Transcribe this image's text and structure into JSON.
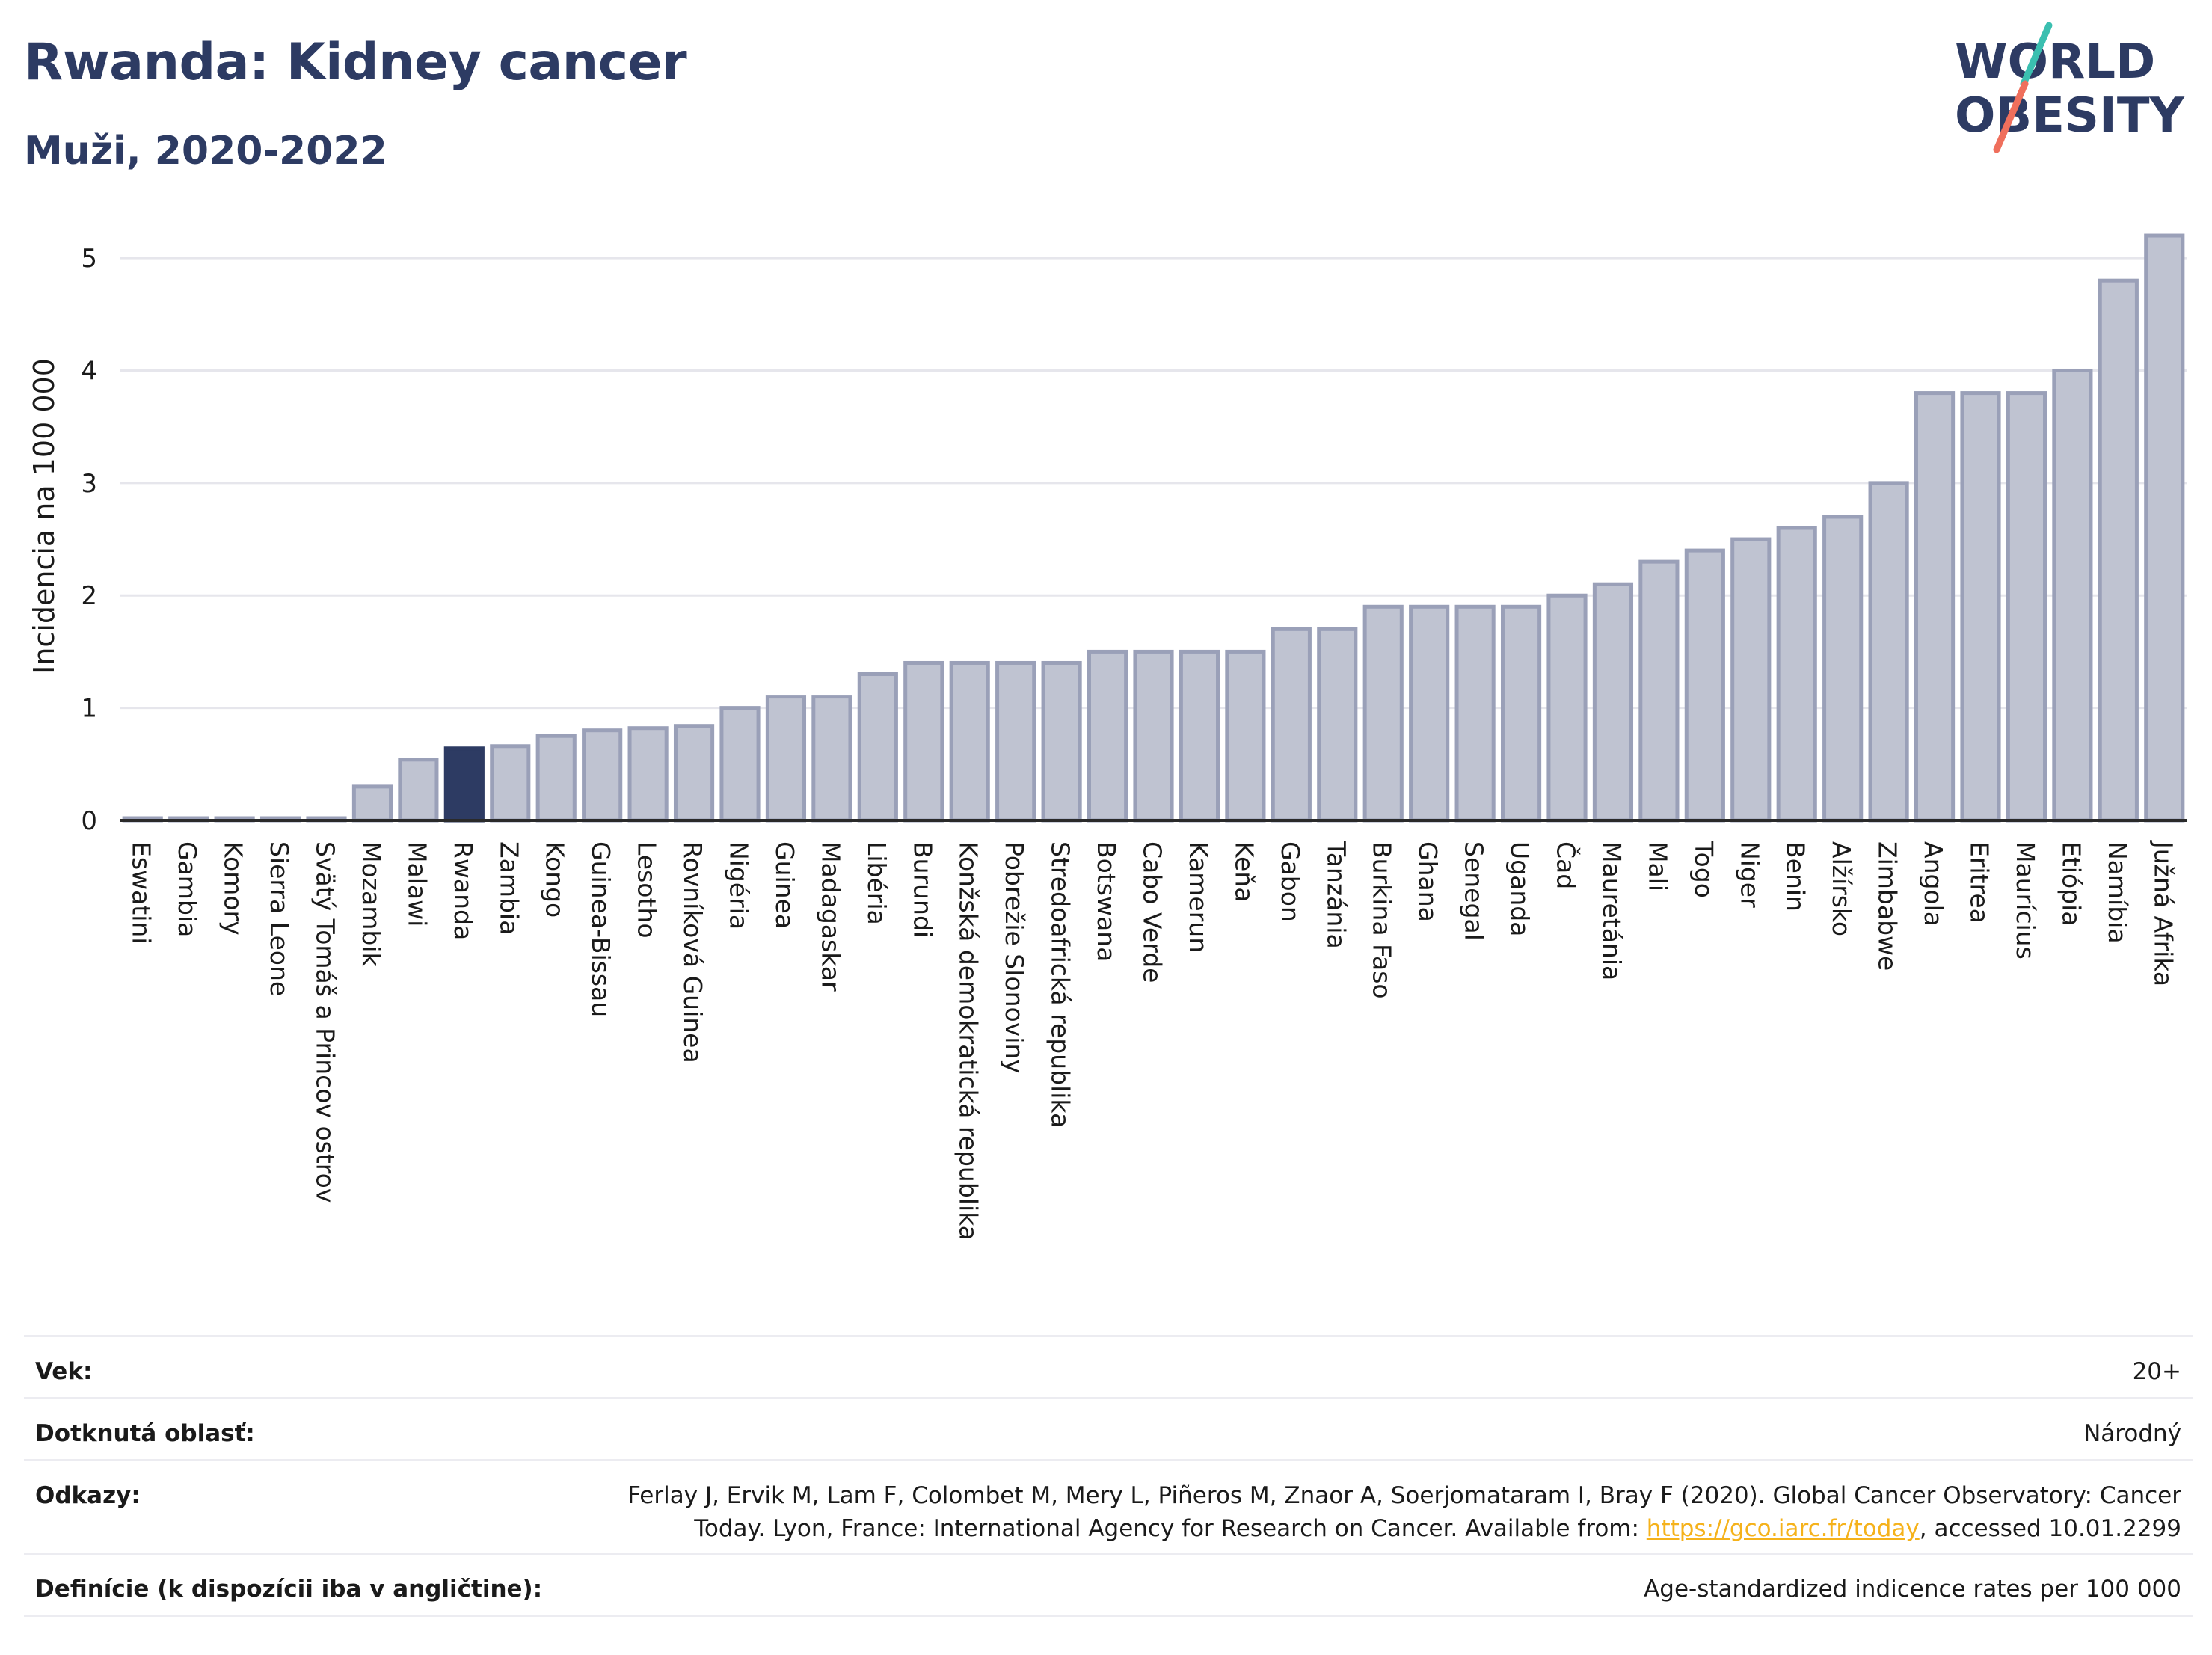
{
  "header": {
    "title": "Rwanda: Kidney cancer",
    "subtitle": "Muži, 2020-2022",
    "logo_line1": "WORLD",
    "logo_line2": "OBESITY"
  },
  "colors": {
    "bar_default": "#bfc3d1",
    "bar_default_stroke": "#9aa0b8",
    "bar_highlight": "#2d3b63",
    "title": "#2d3b63",
    "logo_teal": "#3bbfb0",
    "logo_coral": "#ef6f5c",
    "link": "#f5b21b"
  },
  "chart_data": {
    "type": "bar",
    "ylabel": "Incidencia na 100 000",
    "ylim": [
      0,
      5.3
    ],
    "yticks": [
      0,
      1,
      2,
      3,
      4,
      5
    ],
    "grid": true,
    "highlight": "Rwanda",
    "categories": [
      "Eswatini",
      "Gambia",
      "Komory",
      "Sierra Leone",
      "Svätý Tomáš a Princov ostrov",
      "Mozambik",
      "Malawi",
      "Rwanda",
      "Zambia",
      "Kongo",
      "Guinea-Bissau",
      "Lesotho",
      "Rovníková Guinea",
      "Nigéria",
      "Guinea",
      "Madagaskar",
      "Libéria",
      "Burundi",
      "Konžská demokratická republika",
      "Pobrežie Slonoviny",
      "Stredoafrická republika",
      "Botswana",
      "Cabo Verde",
      "Kamerun",
      "Keňa",
      "Gabon",
      "Tanzánia",
      "Burkina Faso",
      "Ghana",
      "Senegal",
      "Uganda",
      "Čad",
      "Mauretánia",
      "Mali",
      "Togo",
      "Niger",
      "Benin",
      "Alžírsko",
      "Zimbabwe",
      "Angola",
      "Eritrea",
      "Maurícius",
      "Etiópia",
      "Namíbia",
      "Južná Afrika"
    ],
    "values": [
      0.02,
      0.02,
      0.02,
      0.02,
      0.02,
      0.3,
      0.54,
      0.64,
      0.66,
      0.75,
      0.8,
      0.82,
      0.84,
      1.0,
      1.1,
      1.1,
      1.3,
      1.4,
      1.4,
      1.4,
      1.4,
      1.5,
      1.5,
      1.5,
      1.5,
      1.7,
      1.7,
      1.9,
      1.9,
      1.9,
      1.9,
      2.0,
      2.1,
      2.3,
      2.4,
      2.5,
      2.6,
      2.7,
      3.0,
      3.8,
      3.8,
      3.8,
      4.0,
      4.8,
      5.2
    ]
  },
  "info": {
    "rows": [
      {
        "key": "Vek:",
        "value": "20+"
      },
      {
        "key": "Dotknutá oblasť:",
        "value": "Národný"
      },
      {
        "key": "Odkazy:",
        "value_line1": "Ferlay J, Ervik M, Lam F, Colombet M, Mery L, Piñeros M, Znaor A, Soerjomataram I, Bray F (2020). Global Cancer Observatory: Cancer",
        "value_line2_pre": "Today. Lyon, France: International Agency for Research on Cancer. Available from: ",
        "value_link": "https://gco.iarc.fr/today",
        "value_line2_post": ", accessed 10.01.2299"
      },
      {
        "key": "Definície (k dispozícii iba v angličtine):",
        "value": "Age-standardized indicence rates per 100 000"
      }
    ]
  }
}
